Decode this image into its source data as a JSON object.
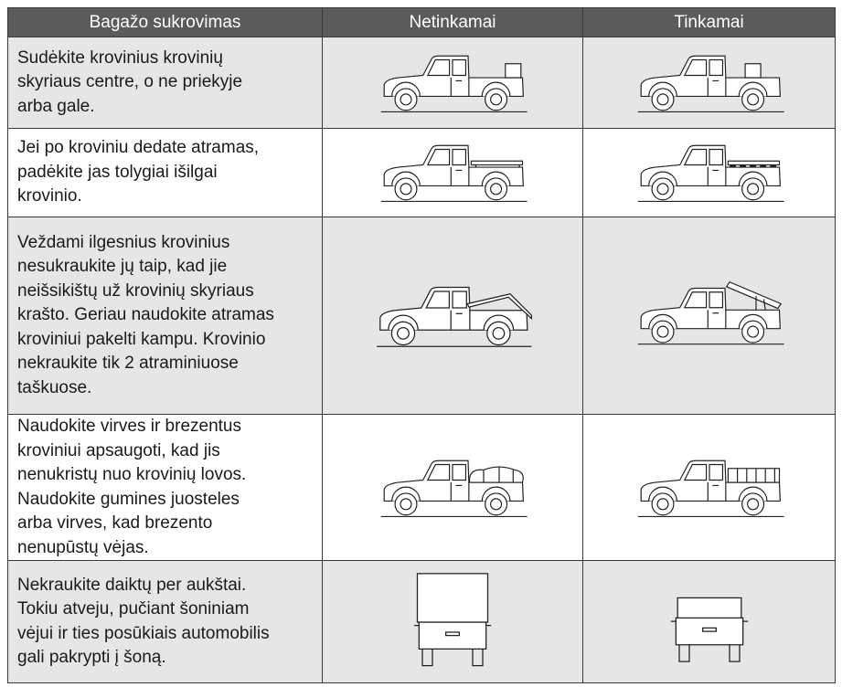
{
  "table": {
    "header": [
      "Bagažo sukrovimas",
      "Netinkamai",
      "Tinkamai"
    ],
    "rows": [
      [
        "Sudėkite krovinius krovinių",
        "skyriaus centre, o ne priekyje",
        "arba gale."
      ],
      [
        "Jei po kroviniu dedate atramas,",
        "padėkite jas tolygiai išilgai",
        "krovinio."
      ],
      [
        "Veždami ilgesnius krovinius",
        "nesukraukite jų taip, kad jie",
        "neišsikištų už krovinių skyriaus",
        "krašto. Geriau naudokite atramas",
        "kroviniui pakelti kampu. Krovinio",
        "nekraukite tik 2 atraminiuose",
        "taškuose."
      ],
      [
        "Naudokite virves ir brezentus",
        "kroviniui apsaugoti, kad jis",
        "nenukristų nuo krovinių lovos.",
        "Naudokite gumines juosteles",
        "arba virves, kad brezento",
        "nenupūstų vėjas."
      ],
      [
        "Nekraukite daiktų per aukštai.",
        "Tokiu atveju, pučiant šoniniam",
        "vėjui ir ties posūkiais  automobilis",
        "gali pakrypti į šoną."
      ]
    ]
  }
}
